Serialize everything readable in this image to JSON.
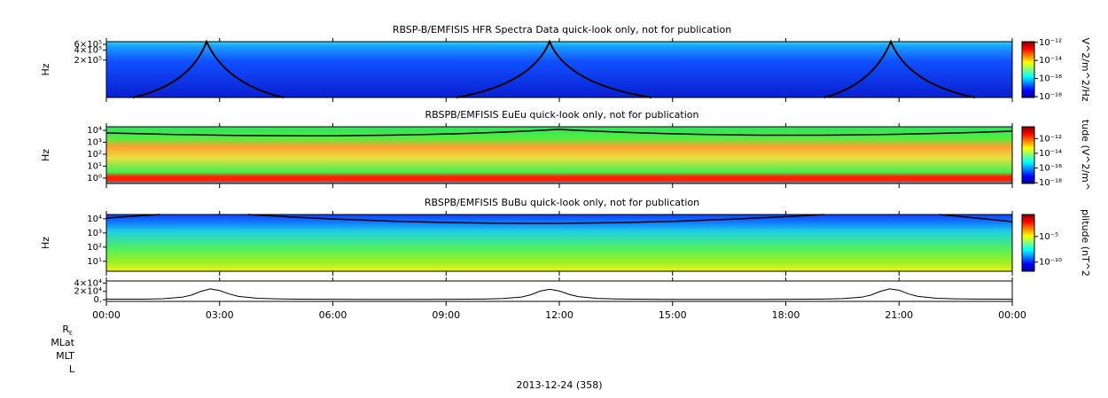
{
  "chart_data": [
    {
      "type": "spectrogram",
      "title": "RBSP-B/EMFISIS  HFR Spectra Data quick-look only, not for publication",
      "ylabel": "Hz",
      "log_y": true,
      "ylim": [
        15000,
        720000
      ],
      "yticks": [
        {
          "value": 200000,
          "label": "2×10⁵"
        },
        {
          "value": 400000,
          "label": "4×10⁵"
        },
        {
          "value": 600000,
          "label": "6×10⁵"
        }
      ],
      "colorbar_label": "V^2/m^2/Hz",
      "clim": [
        8e-19,
        1.2e-12
      ],
      "cticks": [
        {
          "value": 1e-12,
          "label": "10⁻¹²"
        },
        {
          "value": 1e-14,
          "label": "10⁻¹⁴"
        },
        {
          "value": 1e-16,
          "label": "10⁻¹⁶"
        },
        {
          "value": 1e-18,
          "label": "10⁻¹⁸"
        }
      ]
    },
    {
      "type": "spectrogram",
      "title": "RBSPB/EMFISIS  EuEu quick-look only, not for publication",
      "ylabel": "Hz",
      "log_y": true,
      "ylim": [
        0.35,
        20000
      ],
      "yticks": [
        {
          "value": 1,
          "label": "10⁰"
        },
        {
          "value": 10,
          "label": "10¹"
        },
        {
          "value": 100,
          "label": "10²"
        },
        {
          "value": 1000,
          "label": "10³"
        },
        {
          "value": 10000,
          "label": "10⁴"
        }
      ],
      "colorbar_label": "tude (V^2/m^",
      "clim": [
        8e-19,
        4e-11
      ],
      "cticks": [
        {
          "value": 1e-12,
          "label": "10⁻¹²"
        },
        {
          "value": 1e-14,
          "label": "10⁻¹⁴"
        },
        {
          "value": 1e-16,
          "label": "10⁻¹⁶"
        },
        {
          "value": 1e-18,
          "label": "10⁻¹⁸"
        }
      ]
    },
    {
      "type": "spectrogram",
      "title": "RBSPB/EMFISIS  BuBu quick-look only, not for publication",
      "ylabel": "Hz",
      "log_y": true,
      "ylim": [
        2,
        20000
      ],
      "yticks": [
        {
          "value": 10,
          "label": "10¹"
        },
        {
          "value": 100,
          "label": "10²"
        },
        {
          "value": 1000,
          "label": "10³"
        },
        {
          "value": 10000,
          "label": "10⁴"
        }
      ],
      "colorbar_label": "plitude (nT^2",
      "clim": [
        1.6e-12,
        0.2
      ],
      "cticks": [
        {
          "value": 1e-05,
          "label": "10⁻⁵"
        },
        {
          "value": 1e-10,
          "label": "10⁻¹⁰"
        }
      ]
    },
    {
      "type": "line",
      "ylim": [
        -4000,
        45000
      ],
      "yticks": [
        {
          "value": 0,
          "label": "0."
        },
        {
          "value": 20000,
          "label": "2×10⁴"
        },
        {
          "value": 40000,
          "label": "4×10⁴"
        }
      ],
      "xlim": [
        0,
        24
      ],
      "xticks": [
        {
          "value": 0,
          "label": "00:00"
        },
        {
          "value": 3,
          "label": "03:00"
        },
        {
          "value": 6,
          "label": "06:00"
        },
        {
          "value": 9,
          "label": "09:00"
        },
        {
          "value": 12,
          "label": "12:00"
        },
        {
          "value": 15,
          "label": "15:00"
        },
        {
          "value": 18,
          "label": "18:00"
        },
        {
          "value": 21,
          "label": "21:00"
        },
        {
          "value": 24,
          "label": "00:00"
        }
      ],
      "color": "#000000",
      "x": [
        0,
        0.5,
        1,
        1.5,
        2,
        2.25,
        2.5,
        2.75,
        3,
        3.25,
        3.5,
        4,
        4.5,
        5,
        6,
        7,
        8,
        9,
        10,
        10.5,
        11,
        11.25,
        11.5,
        11.75,
        12,
        12.25,
        12.5,
        13,
        13.5,
        14,
        15,
        16,
        17,
        18,
        19,
        19.5,
        20,
        20.25,
        20.5,
        20.75,
        21,
        21.25,
        21.5,
        22,
        22.5,
        23,
        24
      ],
      "values": [
        1500,
        1200,
        1400,
        2500,
        6000,
        11000,
        20000,
        26000,
        22000,
        14000,
        8000,
        3500,
        2000,
        1400,
        1000,
        900,
        900,
        1000,
        1600,
        2800,
        6500,
        12000,
        21000,
        25000,
        21000,
        13000,
        7500,
        3200,
        1900,
        1300,
        900,
        850,
        900,
        1000,
        1500,
        2600,
        6000,
        11000,
        20000,
        26000,
        23000,
        14000,
        8000,
        3400,
        2000,
        1500,
        1200
      ]
    }
  ],
  "footer": {
    "labels": [
      "R",
      "MLat",
      "MLT",
      "L"
    ],
    "subscript": "E",
    "date": "2013-12-24 (358)"
  }
}
